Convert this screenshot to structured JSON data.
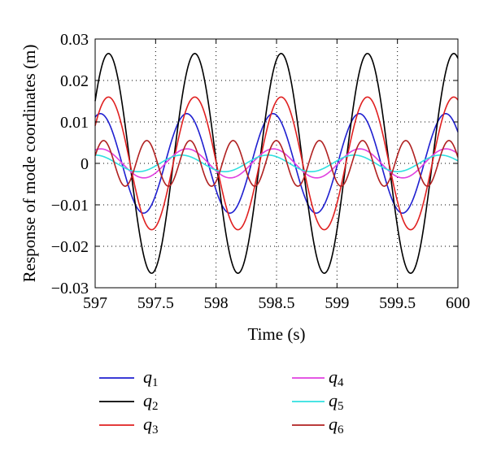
{
  "chart_data": {
    "type": "line",
    "title": "",
    "xlabel": "Time (s)",
    "ylabel": "Response of mode coordinates (m)",
    "xlim": [
      597,
      600
    ],
    "ylim": [
      -0.03,
      0.03
    ],
    "xticks": [
      597,
      597.5,
      598,
      598.5,
      599,
      599.5,
      600
    ],
    "xtick_labels": [
      "597",
      "597.5",
      "598",
      "598.5",
      "599",
      "599.5",
      "600"
    ],
    "yticks": [
      -0.03,
      -0.02,
      -0.01,
      0,
      0.01,
      0.02,
      0.03
    ],
    "ytick_labels": [
      "−0.03",
      "−0.02",
      "−0.01",
      "0",
      "0.01",
      "0.02",
      "0.03"
    ],
    "grid": "dotted",
    "legend_position": "bottom",
    "series": [
      {
        "name": "q1",
        "letter": "q",
        "sub": "1",
        "color": "#1f1fd0",
        "amplitude": 0.012,
        "period": 0.714,
        "peak_time": 597.4,
        "sign": -1
      },
      {
        "name": "q2",
        "letter": "q",
        "sub": "2",
        "color": "#000000",
        "amplitude": 0.0265,
        "period": 0.714,
        "peak_time": 597.11,
        "sign": 1
      },
      {
        "name": "q3",
        "letter": "q",
        "sub": "3",
        "color": "#e02020",
        "amplitude": 0.016,
        "period": 0.714,
        "peak_time": 597.11,
        "sign": 1
      },
      {
        "name": "q4",
        "letter": "q",
        "sub": "4",
        "color": "#e040e0",
        "amplitude": 0.0035,
        "period": 0.714,
        "peak_time": 597.76,
        "sign": 1
      },
      {
        "name": "q5",
        "letter": "q",
        "sub": "5",
        "color": "#30e0e0",
        "amplitude": 0.002,
        "period": 0.714,
        "peak_time": 597.0,
        "sign": 1
      },
      {
        "name": "q6",
        "letter": "q",
        "sub": "6",
        "color": "#b02020",
        "amplitude": 0.0055,
        "period": 0.357,
        "peak_time": 597.07,
        "sign": 1
      }
    ]
  }
}
